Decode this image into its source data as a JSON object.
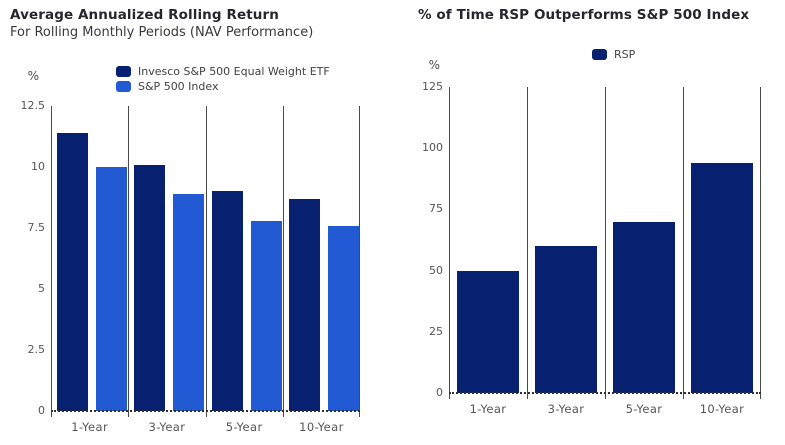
{
  "colors": {
    "etf_navy": "#07206f",
    "index_blue": "#225ad4",
    "axis_line": "#4a4a4a",
    "tick_text": "#56565a",
    "title_text": "#26262e",
    "background": "#ffffff"
  },
  "chart_data": [
    {
      "type": "bar",
      "title": "Average Annualized Rolling Return",
      "subtitle": "For Rolling Monthly Periods (NAV Performance)",
      "xlabel": "",
      "ylabel": "%",
      "categories": [
        "1-Year",
        "3-Year",
        "5-Year",
        "10-Year"
      ],
      "series": [
        {
          "name": "Invesco S&P 500 Equal Weight ETF",
          "color": "#07206f",
          "values": [
            11.4,
            10.1,
            9.0,
            8.7
          ]
        },
        {
          "name": "S&P 500 Index",
          "color": "#225ad4",
          "values": [
            10.0,
            8.9,
            7.8,
            7.6
          ]
        }
      ],
      "ylim": [
        0,
        12.5
      ],
      "yticks": [
        0,
        2.5,
        5,
        7.5,
        10,
        12.5
      ],
      "ytick_labels": [
        "0",
        "2.5",
        "5",
        "7.5",
        "10",
        "12.5"
      ],
      "legend_position": "top",
      "grid": false
    },
    {
      "type": "bar",
      "title": "% of Time RSP Outperforms S&P 500 Index",
      "xlabel": "",
      "ylabel": "%",
      "categories": [
        "1-Year",
        "3-Year",
        "5-Year",
        "10-Year"
      ],
      "series": [
        {
          "name": "RSP",
          "color": "#07206f",
          "values": [
            50,
            60,
            70,
            94
          ]
        }
      ],
      "ylim": [
        0,
        125
      ],
      "yticks": [
        0,
        25,
        50,
        75,
        100,
        125
      ],
      "ytick_labels": [
        "0",
        "25",
        "50",
        "75",
        "100",
        "125"
      ],
      "legend_position": "top",
      "grid": false
    }
  ]
}
